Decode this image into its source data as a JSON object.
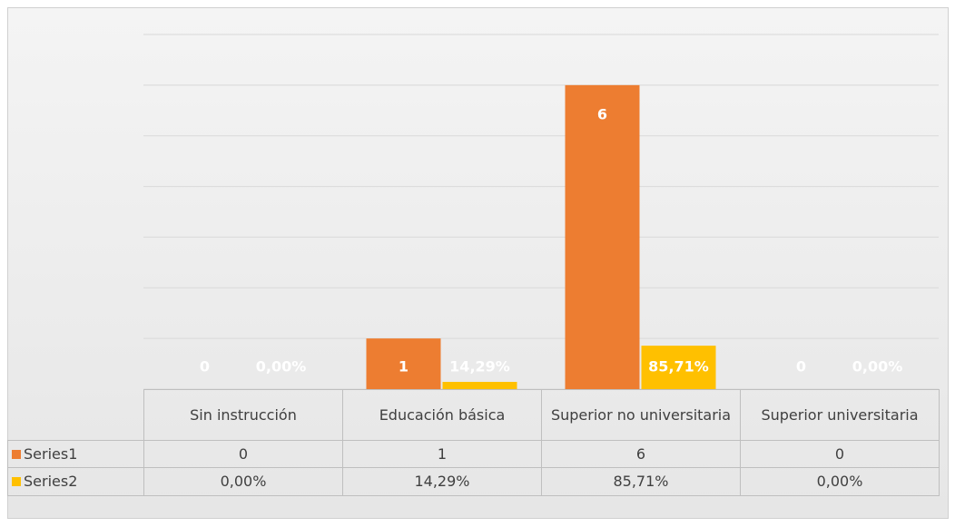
{
  "chart_data": {
    "type": "bar",
    "categories": [
      "Sin instrucción",
      "Educación básica",
      "Superior no universitaria",
      "Superior universitaria"
    ],
    "series": [
      {
        "name": "Series1",
        "color": "#ed7d31",
        "values": [
          0,
          1,
          6,
          0
        ]
      },
      {
        "name": "Series2",
        "color": "#ffc000",
        "values": [
          0,
          0.1429,
          0.8571,
          0
        ],
        "value_labels": [
          "0,00%",
          "14,29%",
          "85,71%",
          "0,00%"
        ]
      }
    ],
    "ylim": [
      0,
      7
    ],
    "yticks": [
      0,
      1,
      2,
      3,
      4,
      5,
      6,
      7
    ],
    "grid": true
  }
}
